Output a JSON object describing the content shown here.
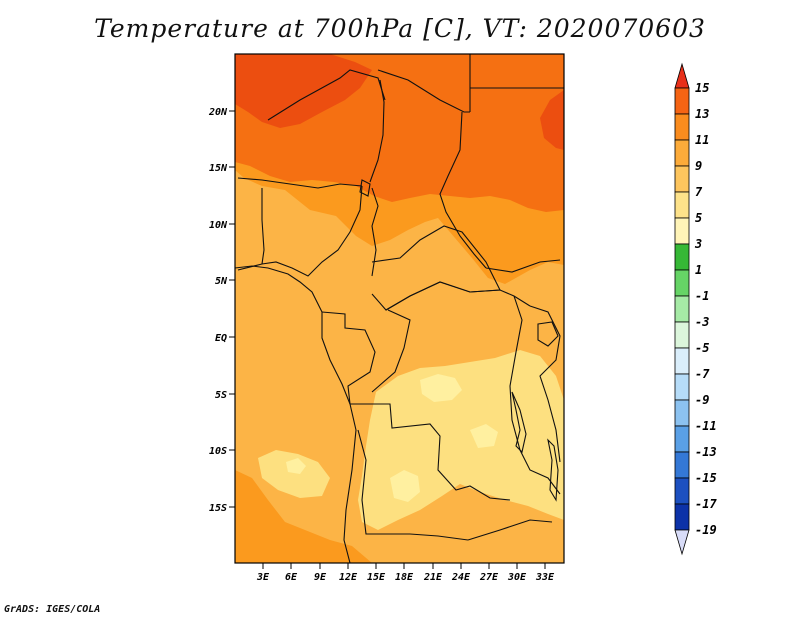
{
  "title": "Temperature at 700hPa [C], VT: 2020070603",
  "credit": "GrADS: IGES/COLA",
  "colors": {
    "frame": "#000000",
    "border": "#111111",
    "fill_3_5": "#fff0a0",
    "fill_5_7": "#fde080",
    "fill_7_9": "#fcb446",
    "fill_9_11": "#fb9a1e",
    "fill_11_13": "#f57012",
    "fill_13_15": "#ec4e10"
  },
  "map": {
    "lat_labels": [
      "20N",
      "15N",
      "10N",
      "5N",
      "EQ",
      "5S",
      "10S",
      "15S"
    ],
    "lon_labels": [
      "3E",
      "6E",
      "9E",
      "12E",
      "15E",
      "18E",
      "21E",
      "24E",
      "27E",
      "30E",
      "33E"
    ]
  },
  "legend": {
    "levels": [
      "15",
      "13",
      "11",
      "9",
      "7",
      "5",
      "3",
      "1",
      "-1",
      "-3",
      "-5",
      "-7",
      "-9",
      "-11",
      "-13",
      "-15",
      "-17",
      "-19"
    ],
    "colors": [
      "#f03c10",
      "#f56414",
      "#fa8c1e",
      "#fcab3a",
      "#fdc55e",
      "#fde28a",
      "#fff4b8",
      "#36b836",
      "#66d466",
      "#a6eaa6",
      "#dcf6dc",
      "#daeefb",
      "#b6dcf8",
      "#8cc2f0",
      "#5aa0e6",
      "#3478d6",
      "#1c50c0",
      "#0c32a8",
      "#0a1a78"
    ],
    "top_tip": "#e8301a",
    "bottom_tip": "#d8dcf8"
  }
}
